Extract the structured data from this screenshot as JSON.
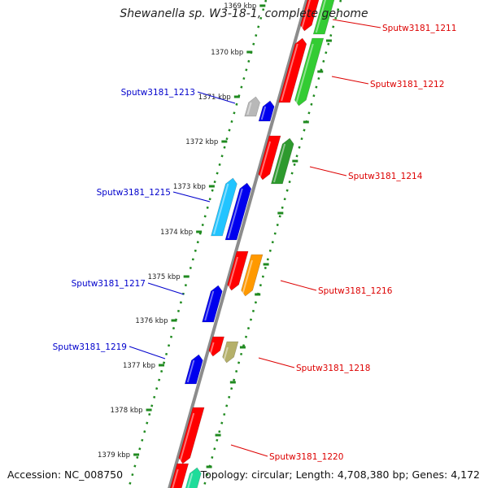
{
  "title": "Shewanella sp. W3-18-1, complete genome",
  "footer": {
    "accession": "Accession: NC_008750",
    "summary": "Topology: circular; Length: 4,708,380 bp; Genes: 4,172"
  },
  "colors": {
    "backbone": "#8c8c8c",
    "ruler": "#1f8a1f",
    "forward_label": "#dd0000",
    "reverse_label": "#0000cc",
    "red": "#ff0000",
    "green": "#33cc33",
    "dark_green": "#2e9a2e",
    "blue": "#0000ee",
    "cyan": "#22c4ff",
    "gray": "#b8b8b8",
    "orange": "#ff9900",
    "olive": "#b5b06a",
    "teal": "#1fdc9a"
  },
  "scale": {
    "ticks": [
      "1369 kbp",
      "1370 kbp",
      "1371 kbp",
      "1372 kbp",
      "1373 kbp",
      "1374 kbp",
      "1375 kbp",
      "1376 kbp",
      "1377 kbp",
      "1378 kbp",
      "1379 kbp"
    ]
  },
  "gene_labels": [
    {
      "text": "Sputw3181_1211",
      "strand": "forward"
    },
    {
      "text": "Sputw3181_1212",
      "strand": "forward"
    },
    {
      "text": "Sputw3181_1213",
      "strand": "reverse"
    },
    {
      "text": "Sputw3181_1214",
      "strand": "forward"
    },
    {
      "text": "Sputw3181_1215",
      "strand": "reverse"
    },
    {
      "text": "Sputw3181_1216",
      "strand": "forward"
    },
    {
      "text": "Sputw3181_1217",
      "strand": "reverse"
    },
    {
      "text": "Sputw3181_1218",
      "strand": "forward"
    },
    {
      "text": "Sputw3181_1219",
      "strand": "reverse"
    },
    {
      "text": "Sputw3181_1220",
      "strand": "forward"
    }
  ],
  "features": [
    {
      "strand": "forward",
      "lane": "inner",
      "color": "red",
      "dir": "down"
    },
    {
      "strand": "forward",
      "lane": "outer",
      "color": "green",
      "dir": "up"
    },
    {
      "strand": "forward",
      "lane": "inner",
      "color": "red",
      "dir": "up"
    },
    {
      "strand": "forward",
      "lane": "outer",
      "color": "green",
      "dir": "down"
    },
    {
      "strand": "reverse",
      "lane": "outer",
      "color": "gray",
      "dir": "up"
    },
    {
      "strand": "reverse",
      "lane": "inner",
      "color": "blue",
      "dir": "up"
    },
    {
      "strand": "forward",
      "lane": "inner",
      "color": "red",
      "dir": "down"
    },
    {
      "strand": "forward",
      "lane": "outer",
      "color": "dark_green",
      "dir": "up"
    },
    {
      "strand": "reverse",
      "lane": "outer",
      "color": "cyan",
      "dir": "up"
    },
    {
      "strand": "reverse",
      "lane": "inner",
      "color": "blue",
      "dir": "up"
    },
    {
      "strand": "forward",
      "lane": "inner",
      "color": "red",
      "dir": "down"
    },
    {
      "strand": "forward",
      "lane": "outer",
      "color": "orange",
      "dir": "down"
    },
    {
      "strand": "reverse",
      "lane": "inner",
      "color": "blue",
      "dir": "up"
    },
    {
      "strand": "forward",
      "lane": "inner",
      "color": "red",
      "dir": "down"
    },
    {
      "strand": "forward",
      "lane": "outer",
      "color": "olive",
      "dir": "down"
    },
    {
      "strand": "reverse",
      "lane": "inner",
      "color": "blue",
      "dir": "up"
    },
    {
      "strand": "forward",
      "lane": "inner",
      "color": "red",
      "dir": "down"
    },
    {
      "strand": "forward",
      "lane": "inner",
      "color": "red",
      "dir": "down"
    },
    {
      "strand": "forward",
      "lane": "outer",
      "color": "teal",
      "dir": "up"
    }
  ]
}
